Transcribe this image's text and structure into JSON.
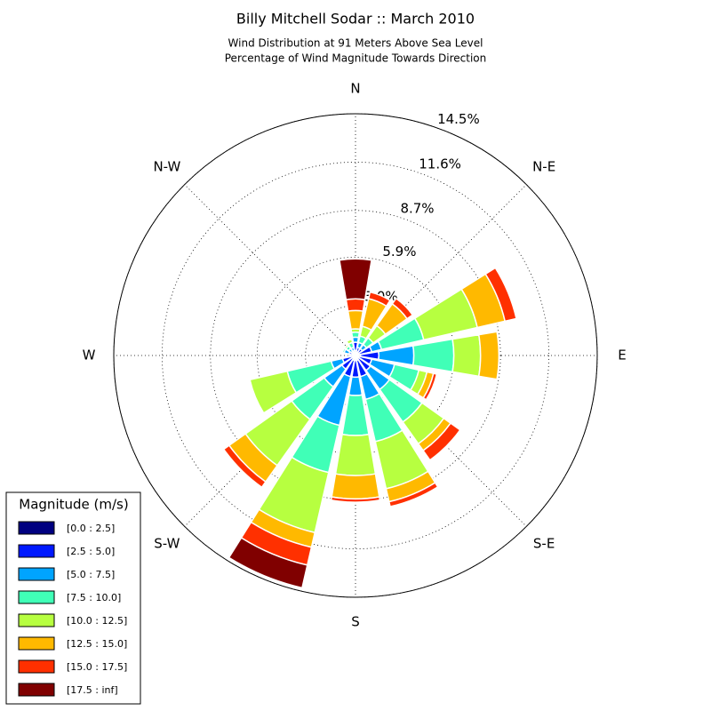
{
  "chart_data": {
    "type": "windrose",
    "title": "Billy Mitchell Sodar :: March 2010",
    "subtitle": [
      "Wind Distribution at 91 Meters Above Sea Level",
      "Percentage of Wind Magnitude Towards Direction"
    ],
    "categories": [
      "N",
      null,
      "N-E",
      null,
      "E",
      null,
      "S-E",
      null,
      "S",
      null,
      "S-W",
      null,
      "W",
      null,
      "N-W",
      null
    ],
    "ylim": [
      0,
      14.5
    ],
    "yticks": [
      {
        "value": 3.0,
        "label": "3.0%"
      },
      {
        "value": 5.9,
        "label": "5.9%"
      },
      {
        "value": 8.7,
        "label": "8.7%"
      },
      {
        "value": 11.6,
        "label": "11.6%"
      },
      {
        "value": 14.5,
        "label": "14.5%"
      }
    ],
    "grid": true,
    "legend_title": "Magnitude (m/s)",
    "legend_position": "lower left",
    "series": [
      {
        "name": "[0.0 : 2.5]",
        "color": "#000080",
        "values": [
          0.3,
          0.2,
          0.2,
          0.2,
          0.3,
          0.2,
          0.2,
          0.3,
          0.3,
          0.3,
          0.2,
          0.2,
          0.1,
          0.1,
          0.1,
          0.1
        ]
      },
      {
        "name": "[2.5 : 5.0]",
        "color": "#0019ff",
        "values": [
          0.5,
          0.3,
          0.3,
          0.8,
          1.1,
          0.8,
          0.9,
          1.0,
          1.0,
          1.0,
          0.8,
          0.6,
          0.2,
          0.3,
          0.2,
          0.2
        ]
      },
      {
        "name": "[5.0 : 7.5]",
        "color": "#00a4ff",
        "values": [
          0.3,
          0.3,
          0.3,
          0.6,
          2.1,
          1.4,
          1.4,
          1.4,
          1.1,
          3.0,
          1.3,
          0.7,
          0.1,
          0.3,
          0.2,
          0.2
        ]
      },
      {
        "name": "[7.5 : 10.0]",
        "color": "#40ffb7",
        "values": [
          0.3,
          0.4,
          0.5,
          2.6,
          2.4,
          1.5,
          2.4,
          2.6,
          2.4,
          2.9,
          2.4,
          2.7,
          0,
          0.1,
          0.2,
          0.3
        ]
      },
      {
        "name": "[10.0 : 12.5]",
        "color": "#b7ff40",
        "values": [
          0.2,
          0.6,
          0.9,
          3.3,
          1.6,
          0.5,
          1.6,
          2.9,
          2.4,
          3.7,
          3.4,
          2.3,
          0,
          0,
          0.1,
          0.2
        ]
      },
      {
        "name": "[12.5 : 15.0]",
        "color": "#ffb900",
        "values": [
          1.1,
          1.7,
          1.6,
          1.7,
          1.1,
          0.4,
          0.5,
          0.8,
          1.4,
          0.9,
          1.2,
          0,
          0,
          0,
          0,
          0
        ]
      },
      {
        "name": "[15.0 : 17.5]",
        "color": "#ff3000",
        "values": [
          0.7,
          0.4,
          0.4,
          0.7,
          0,
          0.2,
          0.7,
          0.3,
          0.2,
          1.1,
          0.4,
          0,
          0,
          0,
          0,
          0
        ]
      },
      {
        "name": "[17.5 : inf]",
        "color": "#800000",
        "values": [
          2.4,
          0,
          0,
          0,
          0,
          0,
          0,
          0,
          0,
          1.4,
          0,
          0,
          0,
          0,
          0,
          0
        ]
      }
    ]
  }
}
